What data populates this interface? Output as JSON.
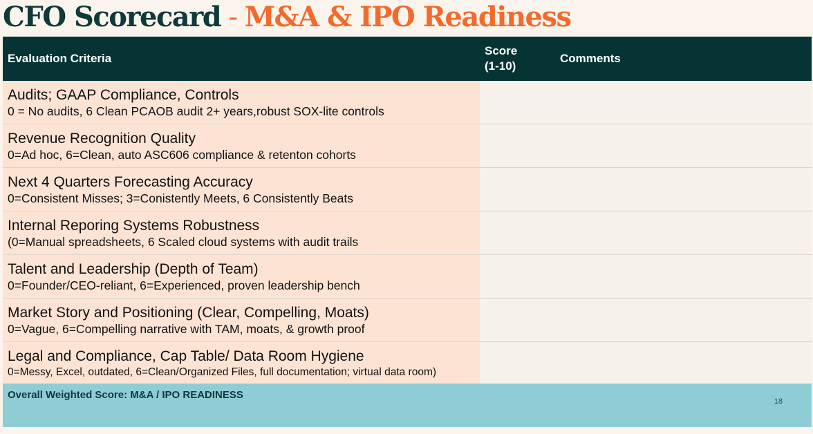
{
  "slide": {
    "title_main": "CFO Scorecard",
    "title_sep": " - ",
    "title_sub": "M&A & IPO Readiness",
    "page_number": "18"
  },
  "table": {
    "headers": {
      "criteria": "Evaluation Criteria",
      "score_line1": "Score",
      "score_line2": "(1-10)",
      "comments": "Comments"
    },
    "rows": [
      {
        "name": "Audits;  GAAP Compliance, Controls",
        "desc": "0 = No audits, 6 Clean PCAOB audit 2+ years,robust SOX-lite controls"
      },
      {
        "name": "Revenue Recognition Quality",
        "desc": "0=Ad hoc, 6=Clean, auto ASC606 compliance & retenton cohorts"
      },
      {
        "name": "Next 4 Quarters Forecasting Accuracy",
        "desc": "0=Consistent Misses; 3=Conistently Meets, 6 Consistently Beats"
      },
      {
        "name": "Internal Reporing Systems Robustness",
        "desc": "(0=Manual spreadsheets, 6 Scaled cloud systems with audit trails"
      },
      {
        "name": "Talent and Leadership (Depth of Team)",
        "desc": "0=Founder/CEO-reliant, 6=Experienced, proven leadership bench"
      },
      {
        "name": "Market Story and Positioning (Clear, Compelling, Moats)",
        "desc": "0=Vague, 6=Compelling narrative with TAM, moats, & growth proof"
      },
      {
        "name": "Legal and Compliance, Cap Table/ Data Room Hygiene",
        "desc": "0=Messy, Excel, outdated, 6=Clean/Organized Files, full documentation; virtual data room)"
      }
    ],
    "footer_label": "Overall Weighted Score:  M&A / IPO  READINESS"
  }
}
